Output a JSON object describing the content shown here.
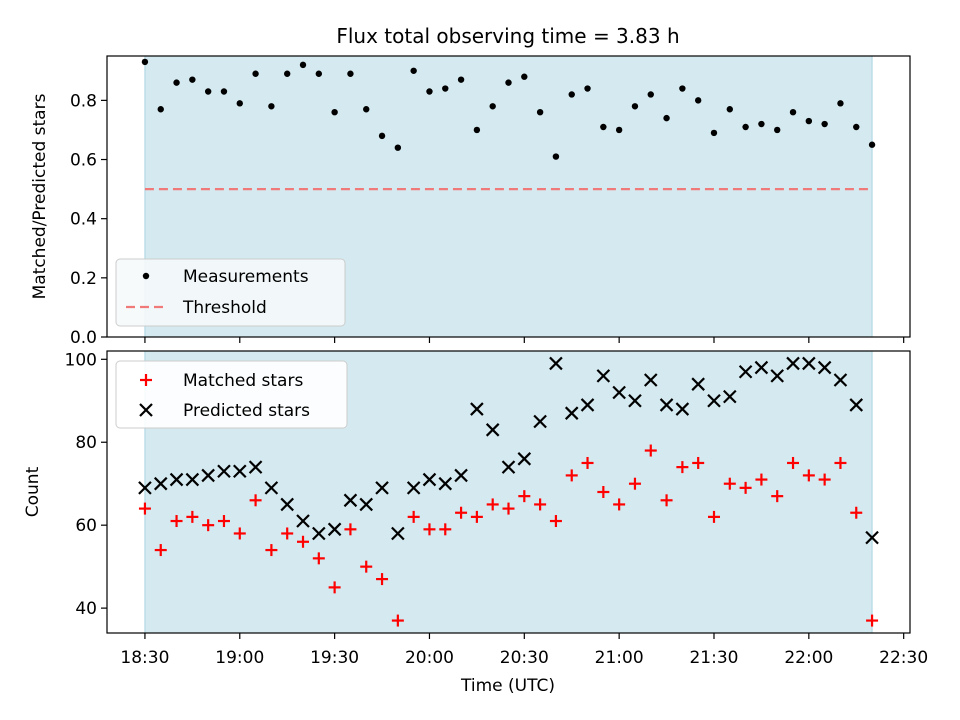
{
  "chart_data": [
    {
      "type": "scatter",
      "title": "Flux total observing time = 3.83 h",
      "xlabel": "",
      "ylabel": "Matched/Predicted stars",
      "ylim": [
        0,
        0.95
      ],
      "yticks": [
        "0.0",
        "0.2",
        "0.4",
        "0.6",
        "0.8"
      ],
      "ytick_values": [
        0,
        0.2,
        0.4,
        0.6,
        0.8
      ],
      "shaded_span": [
        "18:30",
        "22:20"
      ],
      "legend": {
        "placement": "lower-left",
        "entries": [
          "Measurements",
          "Threshold"
        ]
      },
      "threshold": 0.5,
      "series": [
        {
          "name": "Measurements",
          "x": [
            "18:30",
            "18:35",
            "18:40",
            "18:45",
            "18:50",
            "18:55",
            "19:00",
            "19:05",
            "19:10",
            "19:15",
            "19:20",
            "19:25",
            "19:30",
            "19:35",
            "19:40",
            "19:45",
            "19:50",
            "19:55",
            "20:00",
            "20:05",
            "20:10",
            "20:15",
            "20:20",
            "20:25",
            "20:30",
            "20:35",
            "20:40",
            "20:45",
            "20:50",
            "20:55",
            "21:00",
            "21:05",
            "21:10",
            "21:15",
            "21:20",
            "21:25",
            "21:30",
            "21:35",
            "21:40",
            "21:45",
            "21:50",
            "21:55",
            "22:00",
            "22:05",
            "22:10",
            "22:15",
            "22:20"
          ],
          "values": [
            0.93,
            0.77,
            0.86,
            0.87,
            0.83,
            0.83,
            0.79,
            0.89,
            0.78,
            0.89,
            0.92,
            0.89,
            0.76,
            0.89,
            0.77,
            0.68,
            0.64,
            0.9,
            0.83,
            0.84,
            0.87,
            0.7,
            0.78,
            0.86,
            0.88,
            0.76,
            0.61,
            0.82,
            0.84,
            0.71,
            0.7,
            0.78,
            0.82,
            0.74,
            0.84,
            0.8,
            0.69,
            0.77,
            0.71,
            0.72,
            0.7,
            0.76,
            0.73,
            0.72,
            0.79,
            0.71,
            0.65
          ]
        }
      ]
    },
    {
      "type": "scatter",
      "title": "",
      "xlabel": "Time (UTC)",
      "ylabel": "Count",
      "ylim": [
        34,
        102
      ],
      "xlim": [
        "18:18",
        "22:32"
      ],
      "xticks": [
        "18:30",
        "19:00",
        "19:30",
        "20:00",
        "20:30",
        "21:00",
        "21:30",
        "22:00",
        "22:30"
      ],
      "yticks": [
        "40",
        "60",
        "80",
        "100"
      ],
      "ytick_values": [
        40,
        60,
        80,
        100
      ],
      "shaded_span": [
        "18:30",
        "22:20"
      ],
      "legend": {
        "placement": "top-left",
        "entries": [
          "Matched stars",
          "Predicted stars"
        ]
      },
      "series": [
        {
          "name": "Matched stars",
          "marker": "+",
          "color": "#ff0000",
          "x": [
            "18:30",
            "18:35",
            "18:40",
            "18:45",
            "18:50",
            "18:55",
            "19:00",
            "19:05",
            "19:10",
            "19:15",
            "19:20",
            "19:25",
            "19:30",
            "19:35",
            "19:40",
            "19:45",
            "19:50",
            "19:55",
            "20:00",
            "20:05",
            "20:10",
            "20:15",
            "20:20",
            "20:25",
            "20:30",
            "20:35",
            "20:40",
            "20:45",
            "20:50",
            "20:55",
            "21:00",
            "21:05",
            "21:10",
            "21:15",
            "21:20",
            "21:25",
            "21:30",
            "21:35",
            "21:40",
            "21:45",
            "21:50",
            "21:55",
            "22:00",
            "22:05",
            "22:10",
            "22:15",
            "22:20"
          ],
          "values": [
            64,
            54,
            61,
            62,
            60,
            61,
            58,
            66,
            54,
            58,
            56,
            52,
            45,
            59,
            50,
            47,
            37,
            62,
            59,
            59,
            63,
            62,
            65,
            64,
            67,
            65,
            61,
            72,
            75,
            68,
            65,
            70,
            78,
            66,
            74,
            75,
            62,
            70,
            69,
            71,
            67,
            75,
            72,
            71,
            75,
            63,
            37
          ]
        },
        {
          "name": "Predicted stars",
          "marker": "x",
          "color": "#000000",
          "x": [
            "18:30",
            "18:35",
            "18:40",
            "18:45",
            "18:50",
            "18:55",
            "19:00",
            "19:05",
            "19:10",
            "19:15",
            "19:20",
            "19:25",
            "19:30",
            "19:35",
            "19:40",
            "19:45",
            "19:50",
            "19:55",
            "20:00",
            "20:05",
            "20:10",
            "20:15",
            "20:20",
            "20:25",
            "20:30",
            "20:35",
            "20:40",
            "20:45",
            "20:50",
            "20:55",
            "21:00",
            "21:05",
            "21:10",
            "21:15",
            "21:20",
            "21:25",
            "21:30",
            "21:35",
            "21:40",
            "21:45",
            "21:50",
            "21:55",
            "22:00",
            "22:05",
            "22:10",
            "22:15",
            "22:20"
          ],
          "values": [
            69,
            70,
            71,
            71,
            72,
            73,
            73,
            74,
            69,
            65,
            61,
            58,
            59,
            66,
            65,
            69,
            58,
            69,
            71,
            70,
            72,
            88,
            83,
            74,
            76,
            85,
            99,
            87,
            89,
            96,
            92,
            90,
            95,
            89,
            88,
            94,
            90,
            91,
            97,
            98,
            96,
            99,
            99,
            98,
            95,
            89,
            57
          ]
        }
      ]
    }
  ],
  "colors": {
    "shade": "#d5eaf0",
    "threshold": "#f07a7a",
    "measurement": "#000000",
    "matched": "#ff0000",
    "predicted": "#000000"
  }
}
